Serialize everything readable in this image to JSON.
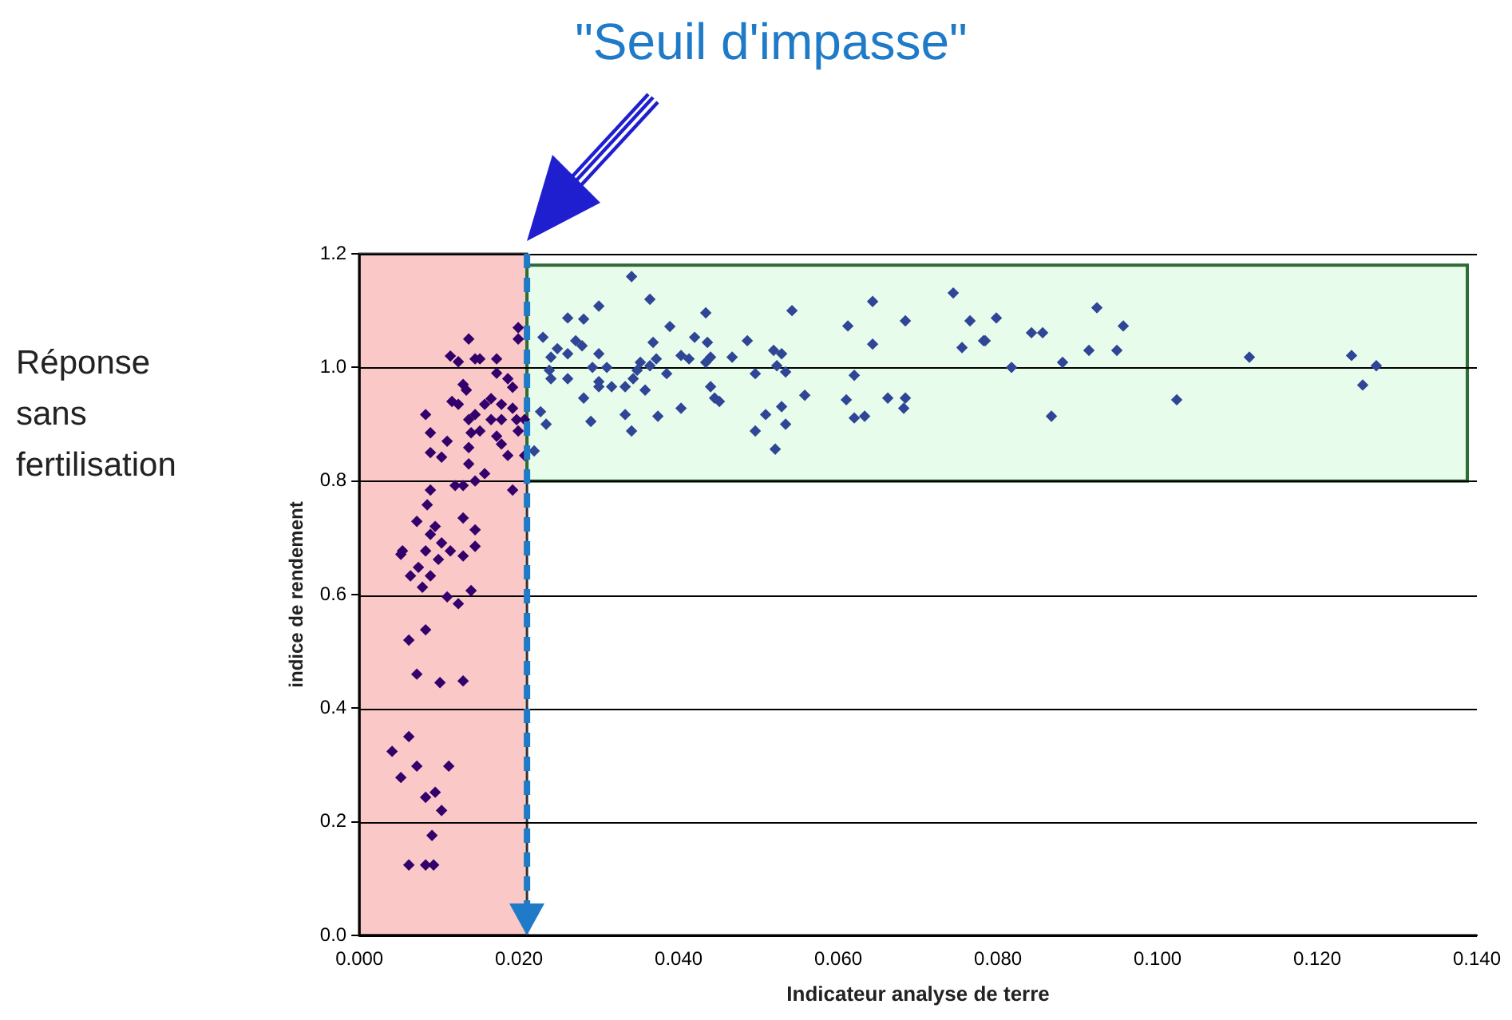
{
  "chart_data": {
    "type": "scatter",
    "xlabel": "Indicateur analyse de terre",
    "ylabel": "indice de rendement",
    "annotations": [
      "Réponse sans fertilisation"
    ],
    "xlim": [
      0,
      0.14
    ],
    "ylim": [
      0,
      1.2
    ],
    "xticks": [
      {
        "value": 0,
        "label": "0.000"
      },
      {
        "value": 0.02,
        "label": "0.020"
      },
      {
        "value": 0.04,
        "label": "0.040"
      },
      {
        "value": 0.06,
        "label": "0.060"
      },
      {
        "value": 0.08,
        "label": "0.080"
      },
      {
        "value": 0.1,
        "label": "0.100"
      },
      {
        "value": 0.12,
        "label": "0.120"
      },
      {
        "value": 0.14,
        "label": "0.140"
      }
    ],
    "yticks": [
      {
        "value": 0,
        "label": "0.0"
      },
      {
        "value": 0.2,
        "label": "0.2"
      },
      {
        "value": 0.4,
        "label": "0.4"
      },
      {
        "value": 0.6,
        "label": "0.6"
      },
      {
        "value": 0.8,
        "label": "0.8"
      },
      {
        "value": 1,
        "label": "1.0"
      },
      {
        "value": 1.2,
        "label": "1.2"
      }
    ],
    "grid": "y",
    "legend": false,
    "marker": "diamond",
    "ref_lines": [
      {
        "axis": "x",
        "value": 0.021,
        "label": "\"Seuil d'impasse\"",
        "color": "#1f7bc8",
        "line_style": "dashed"
      }
    ],
    "bands": [
      {
        "axis": "x",
        "from": 0,
        "to": 0.021,
        "color": "#fbc8c8"
      },
      {
        "axis": "y",
        "from": 0.8,
        "to": 1.18,
        "color": "#e8fcec"
      }
    ],
    "series": [
      {
        "color": "#33006b",
        "x": [
          0.0137,
          0.0114,
          0.0124,
          0.0145,
          0.0151,
          0.0172,
          0.0199,
          0.0199,
          0.0172,
          0.0186,
          0.0192,
          0.013,
          0.0134,
          0.0116,
          0.0124,
          0.0083,
          0.0157,
          0.0165,
          0.0178,
          0.0192,
          0.0145,
          0.0137,
          0.0165,
          0.0178,
          0.0207,
          0.0151,
          0.0172,
          0.0199,
          0.0089,
          0.014,
          0.0137,
          0.011,
          0.0089,
          0.0103,
          0.0178,
          0.0186,
          0.0137,
          0.0157,
          0.0207,
          0.0197,
          0.0192,
          0.012,
          0.013,
          0.0145,
          0.0089,
          0.0085,
          0.0072,
          0.013,
          0.0145,
          0.0089,
          0.0095,
          0.0103,
          0.0054,
          0.0083,
          0.0114,
          0.0145,
          0.0099,
          0.013,
          0.0052,
          0.0074,
          0.0064,
          0.0089,
          0.0079,
          0.011,
          0.0124,
          0.014,
          0.0083,
          0.0062,
          0.0072,
          0.0101,
          0.013,
          0.0062,
          0.0041,
          0.0072,
          0.0112,
          0.0052,
          0.0083,
          0.0095,
          0.0103,
          0.0091,
          0.0062,
          0.0083,
          0.0093
        ],
        "values": [
          1.05,
          1.02,
          1.01,
          1.015,
          1.015,
          1.015,
          1.07,
          1.05,
          0.99,
          0.98,
          0.965,
          0.97,
          0.96,
          0.94,
          0.935,
          0.917,
          0.935,
          0.945,
          0.935,
          0.928,
          0.917,
          0.908,
          0.908,
          0.908,
          0.908,
          0.888,
          0.879,
          0.888,
          0.885,
          0.885,
          0.859,
          0.87,
          0.85,
          0.842,
          0.865,
          0.845,
          0.83,
          0.813,
          0.845,
          0.908,
          0.784,
          0.792,
          0.792,
          0.8,
          0.784,
          0.758,
          0.729,
          0.735,
          0.714,
          0.706,
          0.72,
          0.691,
          0.677,
          0.677,
          0.677,
          0.685,
          0.662,
          0.668,
          0.671,
          0.648,
          0.633,
          0.633,
          0.613,
          0.596,
          0.584,
          0.607,
          0.538,
          0.52,
          0.46,
          0.445,
          0.448,
          0.35,
          0.324,
          0.298,
          0.298,
          0.278,
          0.243,
          0.252,
          0.22,
          0.176,
          0.124,
          0.124,
          0.124
        ]
      },
      {
        "color": "#2f4596",
        "x": [
          0.0341,
          0.0364,
          0.03,
          0.0261,
          0.0281,
          0.0434,
          0.0542,
          0.0389,
          0.023,
          0.0271,
          0.0248,
          0.0279,
          0.0368,
          0.042,
          0.0436,
          0.0486,
          0.024,
          0.0261,
          0.03,
          0.0352,
          0.0372,
          0.0403,
          0.0413,
          0.044,
          0.0467,
          0.0519,
          0.0529,
          0.0238,
          0.0292,
          0.031,
          0.0364,
          0.0434,
          0.0523,
          0.024,
          0.0261,
          0.03,
          0.0496,
          0.0534,
          0.0385,
          0.0348,
          0.0316,
          0.0333,
          0.0343,
          0.0358,
          0.03,
          0.044,
          0.0445,
          0.0451,
          0.0281,
          0.0558,
          0.0227,
          0.0234,
          0.029,
          0.0333,
          0.0374,
          0.0403,
          0.0341,
          0.0496,
          0.0509,
          0.0529,
          0.0534,
          0.0521,
          0.0219,
          0.0612,
          0.0643,
          0.0643,
          0.0684,
          0.062,
          0.061,
          0.062,
          0.0633,
          0.0662,
          0.0684,
          0.0682,
          0.0744,
          0.0765,
          0.0782,
          0.0755,
          0.0798,
          0.0784,
          0.0817,
          0.0842,
          0.0856,
          0.0867,
          0.0881,
          0.0914,
          0.0924,
          0.0949,
          0.0957,
          0.1024,
          0.1115,
          0.1243,
          0.1257,
          0.1274
        ],
        "values": [
          1.16,
          1.12,
          1.108,
          1.087,
          1.085,
          1.096,
          1.1,
          1.072,
          1.053,
          1.047,
          1.033,
          1.038,
          1.044,
          1.053,
          1.044,
          1.047,
          1.018,
          1.024,
          1.024,
          1.009,
          1.015,
          1.021,
          1.015,
          1.018,
          1.018,
          1.03,
          1.024,
          0.995,
          1.0,
          1.0,
          1.003,
          1.009,
          1.003,
          0.98,
          0.98,
          0.975,
          0.989,
          0.992,
          0.989,
          0.995,
          0.966,
          0.966,
          0.98,
          0.96,
          0.966,
          0.966,
          0.946,
          0.94,
          0.946,
          0.951,
          0.922,
          0.9,
          0.905,
          0.917,
          0.914,
          0.928,
          0.888,
          0.888,
          0.917,
          0.931,
          0.9,
          0.856,
          0.853,
          1.073,
          1.116,
          1.041,
          1.082,
          0.986,
          0.943,
          0.911,
          0.914,
          0.946,
          0.946,
          0.928,
          1.131,
          1.082,
          1.047,
          1.035,
          1.087,
          1.047,
          1.0,
          1.061,
          1.061,
          0.914,
          1.009,
          1.03,
          1.105,
          1.03,
          1.073,
          0.943,
          1.018,
          1.021,
          0.969,
          1.003
        ]
      }
    ]
  }
}
